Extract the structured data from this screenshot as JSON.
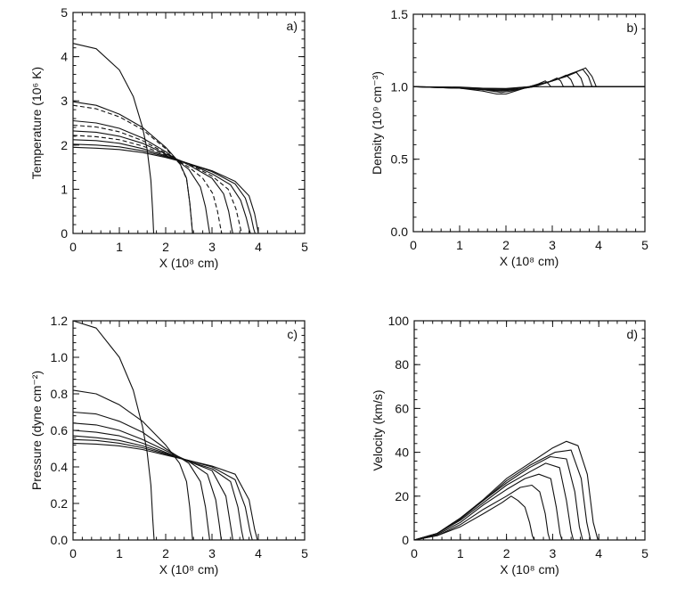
{
  "chart_data": [
    {
      "type": "line",
      "panel": "a)",
      "xlabel": "X (10⁸ cm)",
      "ylabel": "Temperature (10⁶ K)",
      "xlim": [
        0,
        5
      ],
      "ylim": [
        0,
        5
      ],
      "xticks": [
        "0",
        "1",
        "2",
        "3",
        "4",
        "5"
      ],
      "yticks": [
        "0",
        "1",
        "2",
        "3",
        "4",
        "5"
      ],
      "series": [
        {
          "style": "solid",
          "x": [
            0,
            0.5,
            1.0,
            1.3,
            1.5,
            1.6,
            1.68,
            1.72,
            1.74,
            5
          ],
          "y": [
            4.3,
            4.18,
            3.7,
            3.1,
            2.4,
            1.9,
            1.2,
            0.5,
            0.0,
            0.0
          ]
        },
        {
          "style": "solid",
          "x": [
            0,
            0.5,
            1.0,
            1.5,
            2.0,
            2.3,
            2.45,
            2.52,
            2.56,
            2.58,
            5
          ],
          "y": [
            2.98,
            2.9,
            2.7,
            2.4,
            1.95,
            1.6,
            1.25,
            0.7,
            0.25,
            0.0,
            0.0
          ]
        },
        {
          "style": "dashed",
          "x": [
            0,
            0.5,
            1.0,
            1.5,
            2.0,
            2.3,
            2.45,
            2.52,
            2.56,
            2.58,
            5
          ],
          "y": [
            2.9,
            2.82,
            2.64,
            2.35,
            1.92,
            1.58,
            1.24,
            0.7,
            0.25,
            0.0,
            0.0
          ]
        },
        {
          "style": "solid",
          "x": [
            0,
            0.5,
            1.0,
            1.5,
            2.0,
            2.5,
            2.75,
            2.86,
            2.92,
            2.95,
            5
          ],
          "y": [
            2.55,
            2.5,
            2.38,
            2.16,
            1.85,
            1.45,
            1.05,
            0.6,
            0.2,
            0.0,
            0.0
          ]
        },
        {
          "style": "dashed",
          "x": [
            0,
            0.5,
            1.0,
            1.5,
            2.0,
            2.5,
            2.8,
            3.02,
            3.12,
            3.18,
            3.21,
            5
          ],
          "y": [
            2.45,
            2.41,
            2.3,
            2.1,
            1.82,
            1.5,
            1.25,
            0.9,
            0.5,
            0.15,
            0.0,
            0.0
          ]
        },
        {
          "style": "solid",
          "x": [
            0,
            0.5,
            1.0,
            1.5,
            2.0,
            2.5,
            3.0,
            3.25,
            3.36,
            3.42,
            3.45,
            5
          ],
          "y": [
            2.32,
            2.29,
            2.2,
            2.04,
            1.8,
            1.55,
            1.25,
            0.9,
            0.5,
            0.15,
            0.0,
            0.0
          ]
        },
        {
          "style": "dashed",
          "x": [
            0,
            0.5,
            1.0,
            1.5,
            2.0,
            2.5,
            3.0,
            3.35,
            3.52,
            3.6,
            3.64,
            5
          ],
          "y": [
            2.22,
            2.19,
            2.12,
            1.98,
            1.78,
            1.57,
            1.3,
            1.0,
            0.55,
            0.18,
            0.0,
            0.0
          ]
        },
        {
          "style": "solid",
          "x": [
            0,
            0.5,
            1.0,
            1.5,
            2.0,
            2.5,
            3.0,
            3.4,
            3.62,
            3.74,
            3.8,
            3.83,
            5
          ],
          "y": [
            2.12,
            2.1,
            2.04,
            1.92,
            1.76,
            1.58,
            1.35,
            1.1,
            0.75,
            0.35,
            0.1,
            0.0,
            0.0
          ]
        },
        {
          "style": "solid",
          "x": [
            0,
            0.5,
            1.0,
            1.5,
            2.0,
            2.5,
            3.0,
            3.5,
            3.72,
            3.84,
            3.9,
            3.93,
            5
          ],
          "y": [
            2.02,
            2.0,
            1.96,
            1.87,
            1.74,
            1.58,
            1.4,
            1.12,
            0.8,
            0.4,
            0.1,
            0.0,
            0.0
          ]
        },
        {
          "style": "solid",
          "x": [
            0,
            0.5,
            1.0,
            1.5,
            2.0,
            2.5,
            3.0,
            3.5,
            3.8,
            3.92,
            3.98,
            4.0,
            5
          ],
          "y": [
            1.95,
            1.93,
            1.9,
            1.83,
            1.72,
            1.58,
            1.42,
            1.18,
            0.85,
            0.45,
            0.12,
            0.0,
            0.0
          ]
        }
      ]
    },
    {
      "type": "line",
      "panel": "b)",
      "xlabel": "X (10⁸ cm)",
      "ylabel": "Density (10⁹ cm⁻³)",
      "xlim": [
        0,
        5
      ],
      "ylim": [
        0,
        1.5
      ],
      "xticks": [
        "0",
        "1",
        "2",
        "3",
        "4",
        "5"
      ],
      "yticks": [
        "0.0",
        "0.5",
        "1.0",
        "1.5"
      ],
      "series": [
        {
          "style": "solid",
          "x": [
            0,
            1.0,
            1.5,
            1.8,
            2.0,
            2.2,
            2.4,
            2.6,
            5
          ],
          "y": [
            1.0,
            0.99,
            0.97,
            0.95,
            0.95,
            0.97,
            0.99,
            1.0,
            1.0
          ]
        },
        {
          "style": "solid",
          "x": [
            0,
            1.0,
            1.5,
            1.9,
            2.1,
            2.4,
            2.7,
            2.85,
            2.92,
            2.97,
            5
          ],
          "y": [
            1.0,
            0.99,
            0.98,
            0.96,
            0.97,
            0.99,
            1.02,
            1.04,
            1.02,
            1.0,
            1.0
          ]
        },
        {
          "style": "solid",
          "x": [
            0,
            1.0,
            1.5,
            1.9,
            2.2,
            2.6,
            2.9,
            3.1,
            3.18,
            3.24,
            5
          ],
          "y": [
            1.0,
            0.99,
            0.98,
            0.97,
            0.98,
            1.0,
            1.03,
            1.06,
            1.04,
            1.0,
            1.0
          ]
        },
        {
          "style": "solid",
          "x": [
            0,
            1.0,
            1.5,
            1.9,
            2.3,
            2.7,
            3.1,
            3.3,
            3.4,
            3.47,
            5
          ],
          "y": [
            1.0,
            0.995,
            0.98,
            0.975,
            0.985,
            1.01,
            1.05,
            1.08,
            1.05,
            1.0,
            1.0
          ]
        },
        {
          "style": "solid",
          "x": [
            0,
            1.0,
            1.5,
            2.0,
            2.5,
            2.9,
            3.3,
            3.52,
            3.62,
            3.68,
            5
          ],
          "y": [
            1.0,
            0.995,
            0.985,
            0.98,
            1.0,
            1.03,
            1.07,
            1.1,
            1.06,
            1.0,
            1.0
          ]
        },
        {
          "style": "solid",
          "x": [
            0,
            1.0,
            1.5,
            2.0,
            2.5,
            3.0,
            3.4,
            3.66,
            3.78,
            3.86,
            5
          ],
          "y": [
            1.0,
            0.995,
            0.99,
            0.985,
            1.0,
            1.04,
            1.09,
            1.12,
            1.07,
            1.0,
            1.0
          ]
        },
        {
          "style": "solid",
          "x": [
            0,
            1.0,
            1.5,
            2.0,
            2.5,
            3.0,
            3.5,
            3.72,
            3.86,
            3.95,
            5
          ],
          "y": [
            1.0,
            0.998,
            0.99,
            0.988,
            1.0,
            1.04,
            1.1,
            1.13,
            1.07,
            1.0,
            1.0
          ]
        }
      ]
    },
    {
      "type": "line",
      "panel": "c)",
      "xlabel": "X (10⁸ cm)",
      "ylabel": "Pressure (dyne cm⁻²)",
      "xlim": [
        0,
        5
      ],
      "ylim": [
        0,
        1.2
      ],
      "xticks": [
        "0",
        "1",
        "2",
        "3",
        "4",
        "5"
      ],
      "yticks": [
        "0.0",
        "0.2",
        "0.4",
        "0.6",
        "0.8",
        "1.0",
        "1.2"
      ],
      "series": [
        {
          "style": "solid",
          "x": [
            0,
            0.5,
            1.0,
            1.3,
            1.5,
            1.6,
            1.68,
            1.72,
            1.75,
            5
          ],
          "y": [
            1.2,
            1.16,
            1.0,
            0.82,
            0.62,
            0.48,
            0.3,
            0.12,
            0.0,
            0.0
          ]
        },
        {
          "style": "solid",
          "x": [
            0,
            0.5,
            1.0,
            1.5,
            2.0,
            2.3,
            2.45,
            2.52,
            2.56,
            2.58,
            5
          ],
          "y": [
            0.82,
            0.8,
            0.74,
            0.65,
            0.52,
            0.42,
            0.32,
            0.18,
            0.06,
            0.0,
            0.0
          ]
        },
        {
          "style": "solid",
          "x": [
            0,
            0.5,
            1.0,
            1.5,
            2.0,
            2.5,
            2.75,
            2.86,
            2.92,
            2.95,
            5
          ],
          "y": [
            0.7,
            0.69,
            0.65,
            0.59,
            0.5,
            0.42,
            0.32,
            0.18,
            0.06,
            0.0,
            0.0
          ]
        },
        {
          "style": "solid",
          "x": [
            0,
            0.5,
            1.0,
            1.5,
            2.0,
            2.5,
            2.9,
            3.08,
            3.16,
            3.2,
            5
          ],
          "y": [
            0.64,
            0.63,
            0.6,
            0.55,
            0.49,
            0.43,
            0.36,
            0.22,
            0.08,
            0.0,
            0.0
          ]
        },
        {
          "style": "solid",
          "x": [
            0,
            0.5,
            1.0,
            1.5,
            2.0,
            2.5,
            3.0,
            3.3,
            3.4,
            3.45,
            5
          ],
          "y": [
            0.6,
            0.59,
            0.57,
            0.53,
            0.48,
            0.43,
            0.38,
            0.24,
            0.08,
            0.0,
            0.0
          ]
        },
        {
          "style": "solid",
          "x": [
            0,
            0.5,
            1.0,
            1.5,
            2.0,
            2.5,
            3.0,
            3.4,
            3.56,
            3.64,
            3.68,
            5
          ],
          "y": [
            0.57,
            0.56,
            0.545,
            0.515,
            0.475,
            0.43,
            0.39,
            0.32,
            0.18,
            0.05,
            0.0,
            0.0
          ]
        },
        {
          "style": "solid",
          "x": [
            0,
            0.5,
            1.0,
            1.5,
            2.0,
            2.5,
            3.0,
            3.5,
            3.72,
            3.82,
            3.87,
            5
          ],
          "y": [
            0.55,
            0.545,
            0.53,
            0.505,
            0.47,
            0.435,
            0.4,
            0.33,
            0.18,
            0.05,
            0.0,
            0.0
          ]
        },
        {
          "style": "solid",
          "x": [
            0,
            0.5,
            1.0,
            1.5,
            2.0,
            2.5,
            3.0,
            3.5,
            3.8,
            3.92,
            3.98,
            5
          ],
          "y": [
            0.53,
            0.525,
            0.515,
            0.495,
            0.465,
            0.435,
            0.405,
            0.36,
            0.22,
            0.06,
            0.0,
            0.0
          ]
        }
      ]
    },
    {
      "type": "line",
      "panel": "d)",
      "xlabel": "X (10⁸ cm)",
      "ylabel": "Velocity (km/s)",
      "xlim": [
        0,
        5
      ],
      "ylim": [
        0,
        100
      ],
      "xticks": [
        "0",
        "1",
        "2",
        "3",
        "4",
        "5"
      ],
      "yticks": [
        "0",
        "20",
        "40",
        "60",
        "80",
        "100"
      ],
      "series": [
        {
          "style": "solid",
          "x": [
            0,
            0.5,
            1.0,
            1.5,
            1.9,
            2.1,
            2.25,
            2.4,
            2.5,
            2.56,
            2.6,
            5
          ],
          "y": [
            0,
            2,
            6,
            12,
            17,
            20,
            18,
            15,
            8,
            2,
            0,
            0
          ]
        },
        {
          "style": "solid",
          "x": [
            0,
            0.5,
            1.0,
            1.5,
            2.0,
            2.3,
            2.55,
            2.72,
            2.84,
            2.9,
            2.94,
            5
          ],
          "y": [
            0,
            2,
            7,
            14,
            20,
            24,
            25,
            22,
            12,
            3,
            0,
            0
          ]
        },
        {
          "style": "solid",
          "x": [
            0,
            0.5,
            1.0,
            1.5,
            2.0,
            2.4,
            2.7,
            2.96,
            3.08,
            3.16,
            3.2,
            5
          ],
          "y": [
            0,
            2.5,
            8,
            16,
            23,
            28,
            30,
            28,
            15,
            3,
            0,
            0
          ]
        },
        {
          "style": "solid",
          "x": [
            0,
            0.5,
            1.0,
            1.5,
            2.0,
            2.5,
            2.85,
            3.15,
            3.3,
            3.4,
            3.45,
            5
          ],
          "y": [
            0,
            3,
            9,
            17,
            25,
            31,
            35,
            33,
            18,
            4,
            0,
            0
          ]
        },
        {
          "style": "solid",
          "x": [
            0,
            0.5,
            1.0,
            1.5,
            2.0,
            2.5,
            2.95,
            3.3,
            3.48,
            3.58,
            3.65,
            5
          ],
          "y": [
            0,
            3,
            9.5,
            18,
            26,
            33,
            38,
            37,
            22,
            6,
            0,
            0
          ]
        },
        {
          "style": "solid",
          "x": [
            0,
            0.5,
            1.0,
            1.5,
            2.0,
            2.5,
            3.05,
            3.4,
            3.62,
            3.74,
            3.82,
            5
          ],
          "y": [
            0,
            3,
            10,
            18,
            27,
            34,
            40,
            41,
            28,
            8,
            0,
            0
          ]
        },
        {
          "style": "solid",
          "x": [
            0,
            0.5,
            1.0,
            1.5,
            2.0,
            2.5,
            3.0,
            3.3,
            3.55,
            3.75,
            3.88,
            3.98,
            5
          ],
          "y": [
            0,
            3,
            10,
            18.5,
            28,
            35,
            42,
            45,
            43,
            30,
            8,
            0,
            0
          ]
        }
      ]
    }
  ]
}
